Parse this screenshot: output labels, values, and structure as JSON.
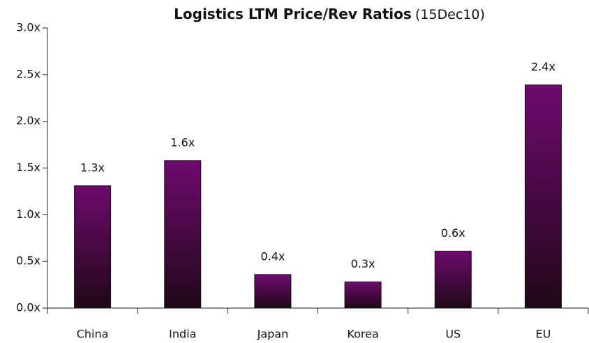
{
  "chart_data": {
    "type": "bar",
    "title": "Logistics LTM Price/Rev Ratios",
    "subtitle": "(15Dec10)",
    "categories": [
      "China",
      "India",
      "Japan",
      "Korea",
      "US",
      "EU"
    ],
    "values": [
      1.31,
      1.58,
      0.36,
      0.28,
      0.61,
      2.39
    ],
    "value_labels": [
      "1.3x",
      "1.6x",
      "0.4x",
      "0.3x",
      "0.6x",
      "2.4x"
    ],
    "color": "#6e0a6e",
    "ylim": [
      0,
      3
    ],
    "yticks": [
      {
        "value": 0,
        "label": "0.0x"
      },
      {
        "value": 0.5,
        "label": "0.5x"
      },
      {
        "value": 1,
        "label": "1.0x"
      },
      {
        "value": 1.5,
        "label": "1.5x"
      },
      {
        "value": 2,
        "label": "2.0x"
      },
      {
        "value": 2.5,
        "label": "2.5x"
      },
      {
        "value": 3,
        "label": "3.0x"
      }
    ],
    "grid": false
  }
}
